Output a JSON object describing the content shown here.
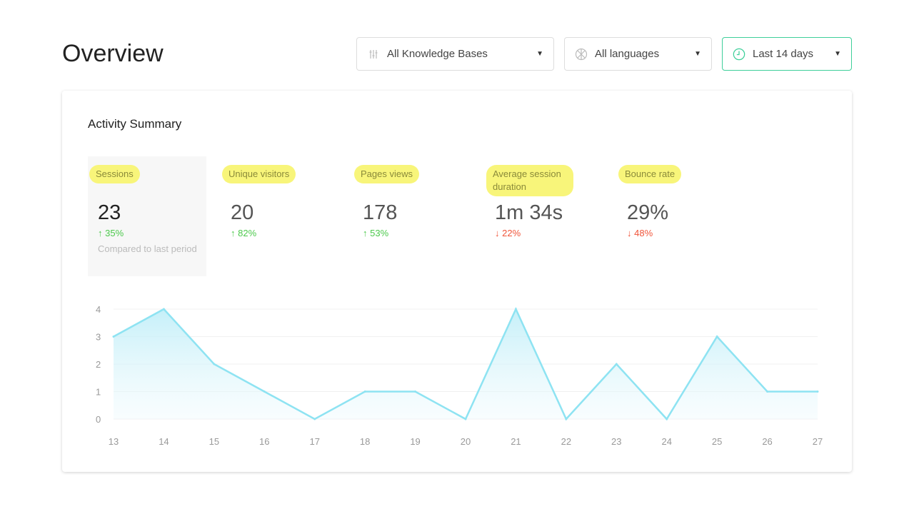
{
  "page": {
    "title": "Overview"
  },
  "filters": {
    "knowledge_base": {
      "label": "All Knowledge Bases",
      "icon": "sliders-icon"
    },
    "language": {
      "label": "All languages",
      "icon": "globe-icon"
    },
    "period": {
      "label": "Last 14 days",
      "icon": "clock-icon",
      "accent": "#3ecf9a"
    }
  },
  "card": {
    "title": "Activity Summary"
  },
  "metrics": [
    {
      "label": "Sessions",
      "value": "23",
      "change": "35%",
      "direction": "up",
      "note": "Compared to last period"
    },
    {
      "label": "Unique visitors",
      "value": "20",
      "change": "82%",
      "direction": "up"
    },
    {
      "label": "Pages views",
      "value": "178",
      "change": "53%",
      "direction": "up"
    },
    {
      "label": "Average session duration",
      "value": "1m 34s",
      "change": "22%",
      "direction": "down"
    },
    {
      "label": "Bounce rate",
      "value": "29%",
      "change": "48%",
      "direction": "down"
    }
  ],
  "chart_data": {
    "type": "area",
    "x": [
      "13",
      "14",
      "15",
      "16",
      "17",
      "18",
      "19",
      "20",
      "21",
      "22",
      "23",
      "24",
      "25",
      "26",
      "27"
    ],
    "values": [
      3,
      4,
      2,
      1,
      0,
      1,
      1,
      0,
      4,
      0,
      2,
      0,
      3,
      1,
      1
    ],
    "yticks": [
      0,
      1,
      2,
      3,
      4
    ],
    "ylim": [
      0,
      4
    ],
    "grid": true,
    "color": "#8ee3f2"
  }
}
